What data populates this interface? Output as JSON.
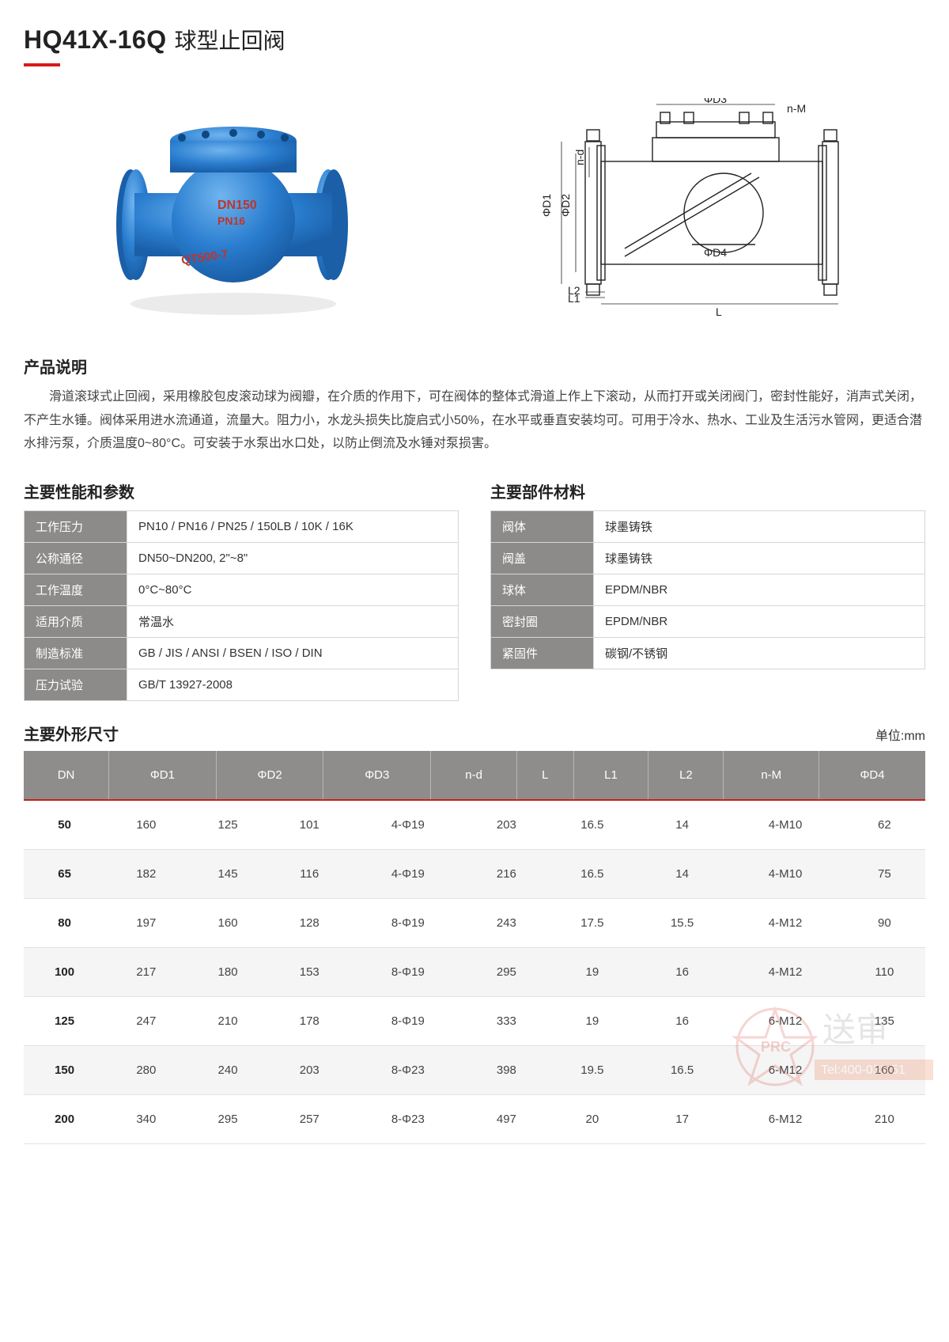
{
  "title": {
    "model": "HQ41X-16Q",
    "cn": "球型止回阀"
  },
  "accent_color": "#d91b1b",
  "photo": {
    "body_color": "#2a7dcf",
    "shade_color": "#1a5fa8",
    "highlight": "#6fb4ef",
    "label1": "DN150",
    "label2": "PN16",
    "label3": "QT500-7",
    "label_color": "#c0342a"
  },
  "drawing": {
    "stroke": "#222222",
    "labels": {
      "D1": "ΦD1",
      "D2": "ΦD2",
      "D3": "ΦD3",
      "D4": "ΦD4",
      "nd": "n-d",
      "nM": "n-M",
      "L": "L",
      "L1": "L1",
      "L2": "L2"
    }
  },
  "sections": {
    "desc_h": "产品说明",
    "desc_p": "滑道滚球式止回阀，采用橡胶包皮滚动球为阀瓣，在介质的作用下，可在阀体的整体式滑道上作上下滚动，从而打开或关闭阀门，密封性能好，消声式关闭，不产生水锤。阀体采用进水流通道，流量大。阻力小，水龙头损失比旋启式小50%，在水平或垂直安装均可。可用于冷水、热水、工业及生活污水管网，更适合潜水排污泵，介质温度0~80°C。可安装于水泵出水口处，以防止倒流及水锤对泵损害。",
    "perf_h": "主要性能和参数",
    "mat_h": "主要部件材料",
    "dim_h": "主要外形尺寸",
    "dim_unit": "单位:mm"
  },
  "perf_table": {
    "rows": [
      {
        "label": "工作压力",
        "value": "PN10 / PN16 / PN25 / 150LB / 10K / 16K"
      },
      {
        "label": "公称通径",
        "value": "DN50~DN200, 2\"~8\""
      },
      {
        "label": "工作温度",
        "value": "0°C~80°C"
      },
      {
        "label": "适用介质",
        "value": "常温水"
      },
      {
        "label": "制造标准",
        "value": "GB / JIS / ANSI / BSEN / ISO / DIN"
      },
      {
        "label": "压力试验",
        "value": "GB/T 13927-2008"
      }
    ]
  },
  "mat_table": {
    "rows": [
      {
        "label": "阀体",
        "value": "球墨铸铁"
      },
      {
        "label": "阀盖",
        "value": "球墨铸铁"
      },
      {
        "label": "球体",
        "value": "EPDM/NBR"
      },
      {
        "label": "密封圈",
        "value": "EPDM/NBR"
      },
      {
        "label": "紧固件",
        "value": "碳钢/不锈钢"
      }
    ]
  },
  "dim_table": {
    "columns": [
      "DN",
      "ΦD1",
      "ΦD2",
      "ΦD3",
      "n-d",
      "L",
      "L1",
      "L2",
      "n-M",
      "ΦD4"
    ],
    "rows": [
      [
        "50",
        "160",
        "125",
        "101",
        "4-Φ19",
        "203",
        "16.5",
        "14",
        "4-M10",
        "62"
      ],
      [
        "65",
        "182",
        "145",
        "116",
        "4-Φ19",
        "216",
        "16.5",
        "14",
        "4-M10",
        "75"
      ],
      [
        "80",
        "197",
        "160",
        "128",
        "8-Φ19",
        "243",
        "17.5",
        "15.5",
        "4-M12",
        "90"
      ],
      [
        "100",
        "217",
        "180",
        "153",
        "8-Φ19",
        "295",
        "19",
        "16",
        "4-M12",
        "110"
      ],
      [
        "125",
        "247",
        "210",
        "178",
        "8-Φ19",
        "333",
        "19",
        "16",
        "6-M12",
        "135"
      ],
      [
        "150",
        "280",
        "240",
        "203",
        "8-Φ23",
        "398",
        "19.5",
        "16.5",
        "6-M12",
        "160"
      ],
      [
        "200",
        "340",
        "295",
        "257",
        "8-Φ23",
        "497",
        "20",
        "17",
        "6-M12",
        "210"
      ]
    ]
  },
  "watermark": {
    "text1": "送审",
    "text2": "PRC",
    "tel": "Tel:400-033-51"
  }
}
